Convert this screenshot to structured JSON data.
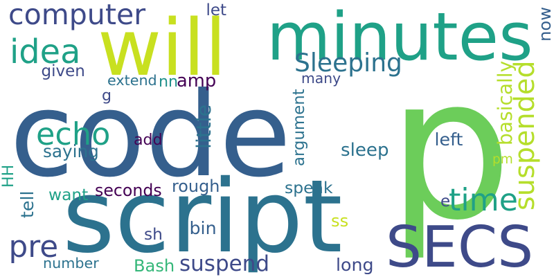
{
  "palette": {
    "purple_dark": "#440154",
    "indigo": "#3e4a89",
    "steel_blue": "#355f8d",
    "blue_teal": "#2c728e",
    "teal": "#21918c",
    "sea_green": "#1fa187",
    "green": "#35b779",
    "light_green": "#6ccd5a",
    "lime": "#b5de2b",
    "yellow_lime": "#c8e020"
  },
  "words": [
    {
      "id": "code",
      "text": "code"
    },
    {
      "id": "p",
      "text": "p"
    },
    {
      "id": "script",
      "text": "script"
    },
    {
      "id": "minutes",
      "text": "minutes"
    },
    {
      "id": "will",
      "text": "will"
    },
    {
      "id": "secs",
      "text": "SECS"
    },
    {
      "id": "computer",
      "text": "computer"
    },
    {
      "id": "suspended",
      "text": "suspended"
    },
    {
      "id": "idea",
      "text": "idea"
    },
    {
      "id": "echo",
      "text": "echo"
    },
    {
      "id": "time",
      "text": "time"
    },
    {
      "id": "pre",
      "text": "pre"
    },
    {
      "id": "sleeping",
      "text": "Sleeping"
    },
    {
      "id": "amp",
      "text": "amp"
    },
    {
      "id": "suspend",
      "text": "suspend"
    },
    {
      "id": "now",
      "text": "now"
    },
    {
      "id": "let",
      "text": "let"
    },
    {
      "id": "given",
      "text": "given"
    },
    {
      "id": "extend",
      "text": "extend"
    },
    {
      "id": "nn",
      "text": "nn"
    },
    {
      "id": "many",
      "text": "many"
    },
    {
      "id": "basically",
      "text": "basically"
    },
    {
      "id": "g",
      "text": "g"
    },
    {
      "id": "argument",
      "text": "argument"
    },
    {
      "id": "little",
      "text": "little"
    },
    {
      "id": "add",
      "text": "add"
    },
    {
      "id": "saying",
      "text": "saying"
    },
    {
      "id": "left",
      "text": "left"
    },
    {
      "id": "pm",
      "text": "pm"
    },
    {
      "id": "sleep",
      "text": "sleep"
    },
    {
      "id": "hh",
      "text": "HH"
    },
    {
      "id": "want",
      "text": "want"
    },
    {
      "id": "rough",
      "text": "rough"
    },
    {
      "id": "speak",
      "text": "speak"
    },
    {
      "id": "seconds",
      "text": "seconds"
    },
    {
      "id": "e",
      "text": "e"
    },
    {
      "id": "tell",
      "text": "tell"
    },
    {
      "id": "ss",
      "text": "ss"
    },
    {
      "id": "sh",
      "text": "sh"
    },
    {
      "id": "bin",
      "text": "bin"
    },
    {
      "id": "number",
      "text": "number"
    },
    {
      "id": "bash",
      "text": "Bash"
    },
    {
      "id": "long",
      "text": "long"
    }
  ]
}
